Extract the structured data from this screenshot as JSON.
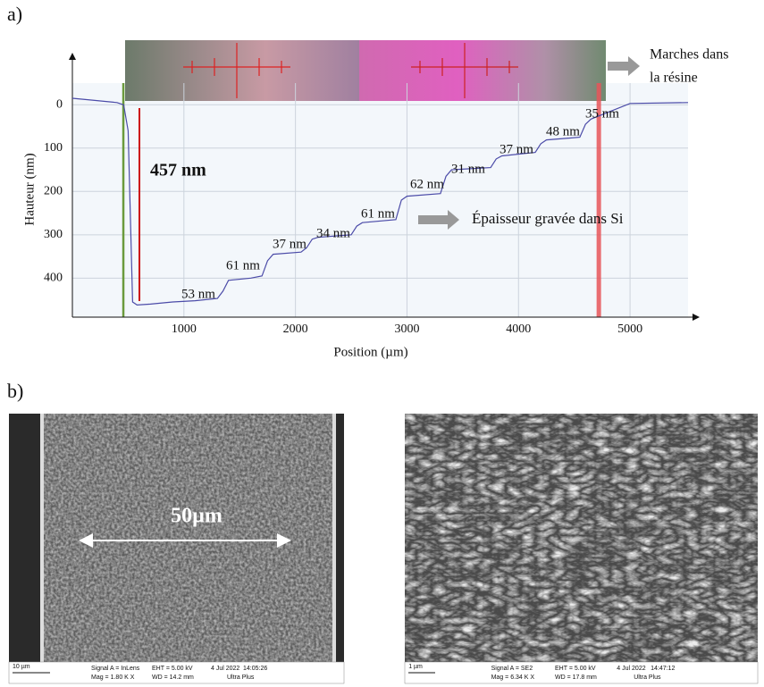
{
  "panel_labels": [
    "a)",
    "b)"
  ],
  "chart_data": {
    "type": "line",
    "ylabel": "Hauteur (nm)",
    "xlabel": "Position (µm)",
    "xlim": [
      0,
      5520
    ],
    "ylim": [
      490,
      -50
    ],
    "xticks": [
      1000,
      2000,
      3000,
      4000,
      5000
    ],
    "yticks": [
      0,
      100,
      200,
      300,
      400
    ],
    "grid": true,
    "x": [
      0,
      200,
      400,
      460,
      500,
      540,
      580,
      700,
      900,
      1100,
      1300,
      1350,
      1400,
      1600,
      1700,
      1750,
      1800,
      2050,
      2100,
      2150,
      2200,
      2500,
      2550,
      2600,
      2900,
      2950,
      3000,
      3300,
      3350,
      3400,
      3750,
      3800,
      3850,
      4150,
      4200,
      4250,
      4550,
      4600,
      4650,
      5000,
      5520
    ],
    "series": [
      {
        "color": "#4b4ba8",
        "values": [
          -15,
          -10,
          -5,
          0,
          60,
          455,
          462,
          460,
          455,
          452,
          447,
          430,
          405,
          400,
          395,
          360,
          345,
          340,
          330,
          310,
          306,
          300,
          280,
          272,
          265,
          220,
          211,
          205,
          165,
          150,
          145,
          125,
          118,
          110,
          90,
          81,
          75,
          45,
          33,
          -3,
          -5
        ]
      }
    ],
    "reference_lines": [
      {
        "x": 457,
        "color": "#6a9a3c"
      },
      {
        "x": 601,
        "color": "#cc1111"
      },
      {
        "x": 4720,
        "color": "#e8555a"
      }
    ],
    "annotations": [
      "457 nm",
      "53 nm",
      "61 nm",
      "37 nm",
      "34 nm",
      "61 nm",
      "62 nm",
      "31 nm",
      "37 nm",
      "48 nm",
      "35 nm",
      "Marches dans",
      "la résine",
      "Épaisseur gravée dans Si"
    ]
  },
  "sem_images": [
    {
      "overlay_label": "50µm",
      "info": [
        "10 µm",
        "Signal A = InLens",
        "Mag =  1.80 K X",
        "EHT =  5.00 kV",
        "WD = 14.2 mm",
        "4 Jul 2022",
        "14:05:26",
        "Ultra Plus"
      ]
    },
    {
      "info": [
        "1 µm",
        "Signal A = SE2",
        "Mag =  6.34 K X",
        "EHT =  5.00 kV",
        "WD = 17.8 mm",
        "4 Jul 2022",
        "14:47:12",
        "Ultra Plus"
      ]
    }
  ]
}
